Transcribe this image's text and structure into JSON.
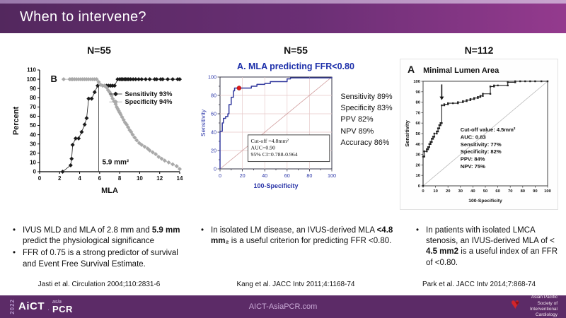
{
  "header": {
    "title": "When to intervene?"
  },
  "columns": [
    {
      "n_label": "N=55",
      "bullets": [
        [
          {
            "t": "IVUS MLD and MLA of 2.8 mm and "
          },
          {
            "t": "5.9 mm",
            "b": 1
          },
          {
            "t": " predict the physiological significance"
          }
        ],
        [
          {
            "t": "FFR of 0.75 is a strong predictor of survival and Event Free Survival Estimate."
          }
        ]
      ],
      "citation": "Jasti et al. Circulation 2004;110:2831-6"
    },
    {
      "n_label": "N=55",
      "bullets": [
        [
          {
            "t": "In isolated LM disease, an IVUS-derived MLA "
          },
          {
            "t": "<4.8 mm₂",
            "b": 1
          },
          {
            "t": " is a useful criterion for predicting FFR <0.80."
          }
        ]
      ],
      "citation": "Kang et al. JACC Intv 2011;4:1168-74"
    },
    {
      "n_label": "N=112",
      "bullets": [
        [
          {
            "t": "In patients with isolated LMCA stenosis, an IVUS-derived MLA of < "
          },
          {
            "t": "4.5 mm2",
            "b": 1
          },
          {
            "t": " is a useful index of an FFR of <0.80."
          }
        ]
      ],
      "citation": "Park et al. JACC Intv 2014;7:868-74"
    }
  ],
  "footer": {
    "year": "2022",
    "brand": "AiCT",
    "brand_sep": "·",
    "brand_top": "asia",
    "brand_sub": "PCR",
    "website": "AICT-AsiaPCR.com",
    "society_lines": [
      "Asian Pacific",
      "Society of",
      "Interventional",
      "Cardiology"
    ]
  },
  "colors": {
    "header_from": "#53285e",
    "header_to": "#943a8e",
    "footer_bg": "#5c2b67",
    "footer_text": "#c9a9d6",
    "heart_red": "#d3252b",
    "roc_title_blue": "#1c2faa",
    "roc_axis_blue": "#2a35a8",
    "roc_curve_blue": "#333a9e",
    "marker_red": "#e01a1a",
    "sensitivity_black": "#1a1a1a",
    "specificity_gray": "#a9a9a9"
  },
  "chart_data": [
    {
      "type": "scatter",
      "panel_label": "B",
      "xlabel": "MLA",
      "ylabel": "Percent",
      "xlim": [
        0,
        14
      ],
      "ylim": [
        0,
        110
      ],
      "xticks": [
        0,
        2,
        4,
        6,
        8,
        10,
        12,
        14
      ],
      "yticks": [
        0,
        10,
        20,
        30,
        40,
        50,
        60,
        70,
        80,
        90,
        100,
        110
      ],
      "cutoff_x": 5.9,
      "cutoff_label": "5.9 mm²",
      "cutoff_top": 93,
      "legend": [
        {
          "label": "Sensitivity  93%",
          "color": "#1a1a1a"
        },
        {
          "label": "Specificity  94%",
          "color": "#a9a9a9"
        }
      ],
      "series": [
        {
          "name": "Sensitivity",
          "color": "#1a1a1a",
          "points": [
            [
              2.3,
              0
            ],
            [
              3.1,
              7
            ],
            [
              3.2,
              14
            ],
            [
              3.3,
              29
            ],
            [
              3.6,
              36
            ],
            [
              3.9,
              36
            ],
            [
              4.2,
              43
            ],
            [
              4.5,
              51
            ],
            [
              4.7,
              58
            ],
            [
              4.9,
              79
            ],
            [
              5.2,
              79
            ],
            [
              5.5,
              86
            ],
            [
              5.8,
              93
            ],
            [
              6.5,
              93
            ],
            [
              6.7,
              93
            ],
            [
              6.9,
              93
            ],
            [
              7.1,
              93
            ],
            [
              7.3,
              93
            ],
            [
              7.5,
              93
            ],
            [
              7.8,
              100
            ],
            [
              8.0,
              100
            ],
            [
              8.15,
              100
            ],
            [
              8.3,
              100
            ],
            [
              8.45,
              100
            ],
            [
              8.6,
              100
            ],
            [
              8.75,
              100
            ],
            [
              8.9,
              100
            ],
            [
              9.1,
              100
            ],
            [
              9.35,
              100
            ],
            [
              9.6,
              100
            ],
            [
              9.9,
              100
            ],
            [
              10.2,
              100
            ],
            [
              10.6,
              100
            ],
            [
              11.0,
              100
            ],
            [
              11.5,
              100
            ],
            [
              11.7,
              100
            ],
            [
              12.1,
              100
            ],
            [
              12.3,
              100
            ],
            [
              12.8,
              100
            ],
            [
              13.3,
              100
            ],
            [
              13.8,
              100
            ],
            [
              14.0,
              100
            ]
          ]
        },
        {
          "name": "Specificity",
          "color": "#a9a9a9",
          "points": [
            [
              2.4,
              100
            ],
            [
              3.0,
              100
            ],
            [
              3.15,
              100
            ],
            [
              3.3,
              100
            ],
            [
              3.5,
              100
            ],
            [
              3.7,
              100
            ],
            [
              3.9,
              100
            ],
            [
              4.1,
              100
            ],
            [
              4.3,
              100
            ],
            [
              4.5,
              100
            ],
            [
              4.7,
              100
            ],
            [
              4.9,
              100
            ],
            [
              5.1,
              100
            ],
            [
              5.3,
              100
            ],
            [
              5.5,
              100
            ],
            [
              5.7,
              100
            ],
            [
              5.9,
              97
            ],
            [
              6.1,
              94
            ],
            [
              6.3,
              93
            ],
            [
              6.5,
              93
            ],
            [
              6.7,
              91
            ],
            [
              6.85,
              88
            ],
            [
              7.0,
              86
            ],
            [
              7.1,
              84
            ],
            [
              7.2,
              82
            ],
            [
              7.3,
              79
            ],
            [
              7.45,
              76
            ],
            [
              7.6,
              73
            ],
            [
              7.7,
              70
            ],
            [
              7.8,
              68
            ],
            [
              7.9,
              66
            ],
            [
              8.0,
              64
            ],
            [
              8.1,
              62
            ],
            [
              8.25,
              59
            ],
            [
              8.4,
              56
            ],
            [
              8.55,
              53
            ],
            [
              8.7,
              51
            ],
            [
              8.85,
              48
            ],
            [
              9.0,
              45
            ],
            [
              9.15,
              43
            ],
            [
              9.3,
              40
            ],
            [
              9.5,
              37
            ],
            [
              9.7,
              34
            ],
            [
              9.95,
              31
            ],
            [
              10.2,
              29
            ],
            [
              10.5,
              27
            ],
            [
              10.8,
              25
            ],
            [
              11.0,
              23
            ],
            [
              11.3,
              21
            ],
            [
              11.6,
              19
            ],
            [
              11.9,
              16
            ],
            [
              12.2,
              14
            ],
            [
              12.5,
              12
            ],
            [
              12.9,
              10
            ],
            [
              13.3,
              8
            ],
            [
              13.7,
              6
            ],
            [
              14.0,
              3
            ]
          ]
        }
      ]
    },
    {
      "type": "line",
      "title": "A. MLA predicting FFR<0.80",
      "xlabel": "100-Specificity",
      "ylabel": "Sensitivity",
      "xlim": [
        0,
        100
      ],
      "ylim": [
        0,
        100
      ],
      "xticks": [
        0,
        20,
        40,
        60,
        80,
        100
      ],
      "yticks": [
        0,
        20,
        40,
        60,
        80,
        100
      ],
      "grid": true,
      "curve_color": "#333a9e",
      "curve": [
        [
          0,
          0
        ],
        [
          0,
          41
        ],
        [
          2,
          41
        ],
        [
          2,
          50
        ],
        [
          3,
          50
        ],
        [
          3,
          55
        ],
        [
          5,
          55
        ],
        [
          5,
          57
        ],
        [
          7,
          57
        ],
        [
          7,
          60
        ],
        [
          8,
          60
        ],
        [
          8,
          70
        ],
        [
          10,
          70
        ],
        [
          10,
          78
        ],
        [
          12,
          78
        ],
        [
          12,
          85
        ],
        [
          13,
          85
        ],
        [
          13,
          88
        ],
        [
          17,
          88
        ],
        [
          28,
          88
        ],
        [
          28,
          90
        ],
        [
          33,
          90
        ],
        [
          33,
          92
        ],
        [
          40,
          92
        ],
        [
          40,
          93
        ],
        [
          45,
          93
        ],
        [
          45,
          95
        ],
        [
          60,
          95
        ],
        [
          60,
          98
        ],
        [
          63,
          98
        ],
        [
          63,
          99
        ],
        [
          100,
          99
        ],
        [
          100,
          100
        ]
      ],
      "marker": {
        "x": 17,
        "y": 88,
        "color": "#e01a1a"
      },
      "diagonal": true,
      "annotation_box": [
        "Cut-off =4.8mm²",
        "AUC=0.90",
        "95% CI=0.788-0.964"
      ],
      "stats": [
        "Sensitivity 89%",
        "Specificity 83%",
        "PPV 82%",
        "NPV 89%",
        "Accuracy 86%"
      ]
    },
    {
      "type": "line",
      "panel_label": "A",
      "title": "Minimal Lumen Area",
      "xlabel": "100-Specificity",
      "ylabel": "Sensitivity",
      "xlim": [
        0,
        100
      ],
      "ylim": [
        0,
        100
      ],
      "xticks": [
        0,
        10,
        20,
        30,
        40,
        50,
        60,
        70,
        80,
        90,
        100
      ],
      "yticks": [
        0,
        10,
        20,
        30,
        40,
        50,
        60,
        70,
        80,
        90,
        100
      ],
      "curve_color": "#222222",
      "curve": [
        [
          0,
          0
        ],
        [
          0,
          28
        ],
        [
          1,
          28
        ],
        [
          1,
          33
        ],
        [
          3,
          33
        ],
        [
          3,
          35
        ],
        [
          4,
          35
        ],
        [
          4,
          37
        ],
        [
          5,
          37
        ],
        [
          5,
          40
        ],
        [
          6,
          40
        ],
        [
          6,
          42
        ],
        [
          7,
          42
        ],
        [
          7,
          45
        ],
        [
          8,
          45
        ],
        [
          8,
          47
        ],
        [
          9,
          47
        ],
        [
          9,
          50
        ],
        [
          11,
          50
        ],
        [
          11,
          52
        ],
        [
          12,
          52
        ],
        [
          12,
          55
        ],
        [
          13,
          55
        ],
        [
          13,
          58
        ],
        [
          14,
          58
        ],
        [
          14,
          60
        ],
        [
          15,
          60
        ],
        [
          15,
          77
        ],
        [
          17,
          77
        ],
        [
          17,
          78
        ],
        [
          20,
          78
        ],
        [
          20,
          79
        ],
        [
          24,
          79
        ],
        [
          28,
          79
        ],
        [
          28,
          80
        ],
        [
          32,
          80
        ],
        [
          32,
          81
        ],
        [
          35,
          81
        ],
        [
          35,
          82
        ],
        [
          38,
          82
        ],
        [
          38,
          83
        ],
        [
          41,
          83
        ],
        [
          41,
          84
        ],
        [
          44,
          84
        ],
        [
          44,
          85
        ],
        [
          46,
          85
        ],
        [
          46,
          86
        ],
        [
          48,
          86
        ],
        [
          48,
          88
        ],
        [
          54,
          88
        ],
        [
          54,
          95
        ],
        [
          57,
          95
        ],
        [
          57,
          96
        ],
        [
          60,
          96
        ],
        [
          68,
          96
        ],
        [
          68,
          99
        ],
        [
          74,
          99
        ],
        [
          74,
          100
        ],
        [
          78,
          100
        ],
        [
          82,
          100
        ],
        [
          86,
          100
        ],
        [
          90,
          100
        ],
        [
          95,
          100
        ],
        [
          100,
          100
        ]
      ],
      "arrow": {
        "x": 15,
        "y_from": 97,
        "y_to": 82
      },
      "diagonal": true,
      "stats": [
        "Cut-off value: 4.5mm²",
        "AUC: 0.83",
        "Sensitivity: 77%",
        "Specificity: 82%",
        "PPV: 84%",
        "NPV: 75%"
      ]
    }
  ]
}
